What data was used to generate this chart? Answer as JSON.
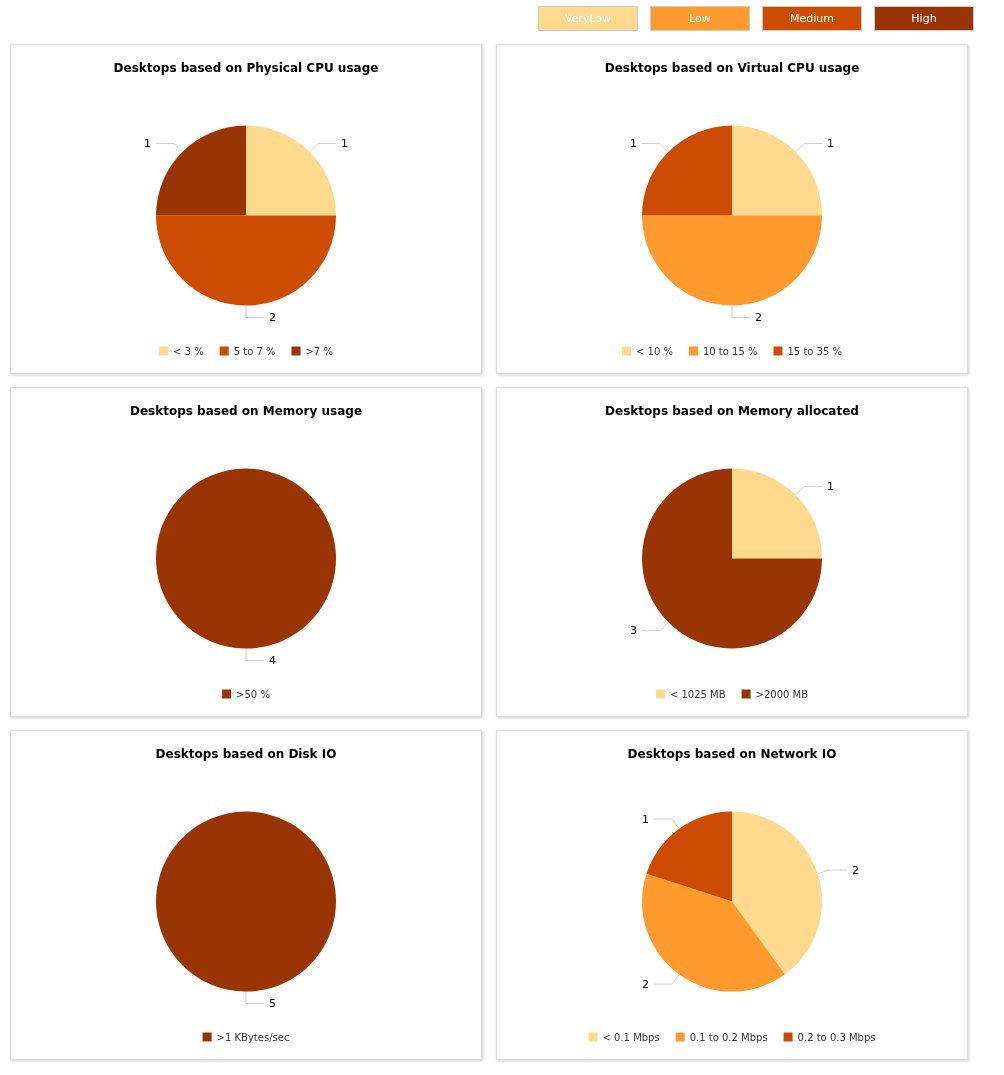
{
  "chart_data": [
    {
      "type": "other",
      "categories": [
        "VeryLow",
        "Low",
        "Medium",
        "High"
      ],
      "colors": [
        "#ffd98e",
        "#fe9a2e",
        "#cc4c02",
        "#993404"
      ]
    },
    {
      "type": "pie",
      "title": "Desktops based on Physical CPU usage",
      "categories": [
        "< 3 %",
        "5 to 7 %",
        ">7 %"
      ],
      "values": [
        1,
        2,
        1
      ],
      "colors": [
        "#ffd98e",
        "#cc4c02",
        "#993404"
      ],
      "data_labels": true,
      "legend": "bottom"
    },
    {
      "type": "pie",
      "title": "Desktops based on Virtual CPU usage",
      "categories": [
        "< 10 %",
        "10 to 15 %",
        "15 to 35 %"
      ],
      "values": [
        1,
        2,
        1
      ],
      "colors": [
        "#ffd98e",
        "#fe9a2e",
        "#cc4c02"
      ],
      "data_labels": true,
      "legend": "bottom"
    },
    {
      "type": "pie",
      "title": "Desktops based on Memory usage",
      "categories": [
        ">50 %"
      ],
      "values": [
        4
      ],
      "colors": [
        "#993404"
      ],
      "data_labels": true,
      "legend": "bottom"
    },
    {
      "type": "pie",
      "title": "Desktops based on Memory allocated",
      "categories": [
        "< 1025 MB",
        ">2000 MB"
      ],
      "values": [
        1,
        3
      ],
      "colors": [
        "#ffd98e",
        "#993404"
      ],
      "data_labels": true,
      "legend": "bottom"
    },
    {
      "type": "pie",
      "title": "Desktops based on Disk IO",
      "categories": [
        ">1 KBytes/sec"
      ],
      "values": [
        5
      ],
      "colors": [
        "#993404"
      ],
      "data_labels": true,
      "legend": "bottom"
    },
    {
      "type": "pie",
      "title": "Desktops based on Network IO",
      "categories": [
        "< 0.1 Mbps",
        "0.1 to 0.2 Mbps",
        "0.2 to 0.3 Mbps"
      ],
      "values": [
        2,
        2,
        1
      ],
      "colors": [
        "#ffd98e",
        "#fe9a2e",
        "#cc4c02"
      ],
      "data_labels": true,
      "legend": "bottom"
    }
  ]
}
